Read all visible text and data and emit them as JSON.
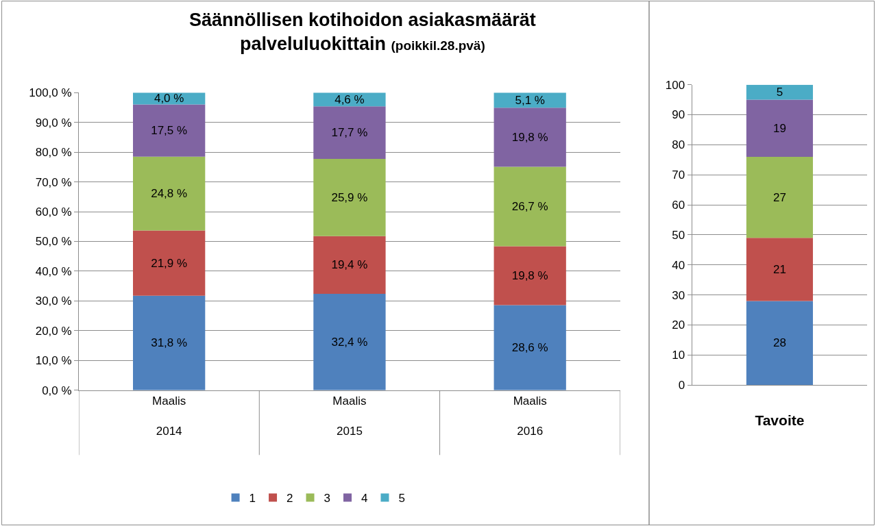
{
  "chart_data": [
    {
      "type": "bar",
      "title": "Säännöllisen kotihoidon asiakasmäärät palveluluokittain",
      "subtitle": "(poikkil.28.pvä)",
      "stacked": true,
      "categories": [
        "Maalis\n2014",
        "Maalis\n2015",
        "Maalis\n2016"
      ],
      "series": [
        {
          "name": "1",
          "color": "#4f81bd",
          "values": [
            31.8,
            32.4,
            28.6
          ],
          "value_labels": [
            "31,8 %",
            "32,4 %",
            "28,6 %"
          ]
        },
        {
          "name": "2",
          "color": "#c0504d",
          "values": [
            21.9,
            19.4,
            19.8
          ],
          "value_labels": [
            "21,9 %",
            "19,4 %",
            "19,8 %"
          ]
        },
        {
          "name": "3",
          "color": "#9bbb59",
          "values": [
            24.8,
            25.9,
            26.7
          ],
          "value_labels": [
            "24,8 %",
            "25,9 %",
            "26,7 %"
          ]
        },
        {
          "name": "4",
          "color": "#8064a2",
          "values": [
            17.5,
            17.7,
            19.8
          ],
          "value_labels": [
            "17,5 %",
            "17,7 %",
            "19,8 %"
          ]
        },
        {
          "name": "5",
          "color": "#4bacc6",
          "values": [
            4.0,
            4.6,
            5.1
          ],
          "value_labels": [
            "4,0 %",
            "4,6 %",
            "5,1 %"
          ]
        }
      ],
      "ylim": [
        0,
        100
      ],
      "yticks": [
        {
          "value": 0,
          "label": "0,0 %"
        },
        {
          "value": 10,
          "label": "10,0 %"
        },
        {
          "value": 20,
          "label": "20,0 %"
        },
        {
          "value": 30,
          "label": "30,0 %"
        },
        {
          "value": 40,
          "label": "40,0 %"
        },
        {
          "value": 50,
          "label": "50,0 %"
        },
        {
          "value": 60,
          "label": "60,0 %"
        },
        {
          "value": 70,
          "label": "70,0 %"
        },
        {
          "value": 80,
          "label": "80,0 %"
        },
        {
          "value": 90,
          "label": "90,0 %"
        },
        {
          "value": 100,
          "label": "100,0 %"
        }
      ],
      "grid": "y",
      "legend": "bottom"
    },
    {
      "type": "bar",
      "stacked": true,
      "xlabel": "Tavoite",
      "categories": [
        null
      ],
      "series": [
        {
          "color": "#4f81bd",
          "values": [
            28
          ]
        },
        {
          "color": "#c0504d",
          "values": [
            21
          ]
        },
        {
          "color": "#9bbb59",
          "values": [
            27
          ]
        },
        {
          "color": "#8064a2",
          "values": [
            19
          ]
        },
        {
          "color": "#4bacc6",
          "values": [
            5
          ]
        }
      ],
      "ylim": [
        0,
        100
      ],
      "yticks": [
        0,
        10,
        20,
        30,
        40,
        50,
        60,
        70,
        80,
        90,
        100
      ],
      "grid": "y",
      "data_labels": true
    }
  ]
}
